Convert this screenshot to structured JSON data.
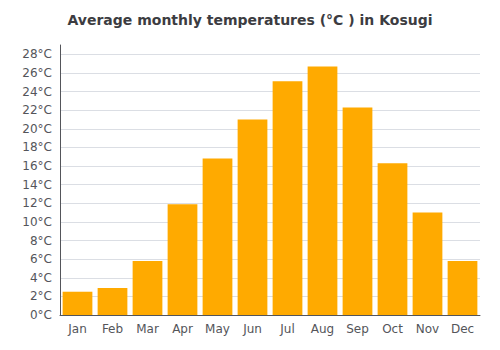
{
  "chart_data": {
    "type": "bar",
    "title": "Average monthly temperatures (°C ) in Kosugi",
    "categories": [
      "Jan",
      "Feb",
      "Mar",
      "Apr",
      "May",
      "Jun",
      "Jul",
      "Aug",
      "Sep",
      "Oct",
      "Nov",
      "Dec"
    ],
    "values": [
      2.5,
      2.9,
      5.8,
      11.9,
      16.8,
      21.0,
      25.1,
      26.7,
      22.3,
      16.3,
      11.0,
      5.8
    ],
    "color": "#FFAA00",
    "ylim": [
      0,
      29
    ],
    "yticks": [
      {
        "value": 0,
        "label": "0°C"
      },
      {
        "value": 2,
        "label": "2°C"
      },
      {
        "value": 4,
        "label": "4°C"
      },
      {
        "value": 6,
        "label": "6°C"
      },
      {
        "value": 8,
        "label": "8°C"
      },
      {
        "value": 10,
        "label": "10°C"
      },
      {
        "value": 12,
        "label": "12°C"
      },
      {
        "value": 14,
        "label": "14°C"
      },
      {
        "value": 16,
        "label": "16°C"
      },
      {
        "value": 18,
        "label": "18°C"
      },
      {
        "value": 20,
        "label": "20°C"
      },
      {
        "value": 22,
        "label": "22°C"
      },
      {
        "value": 24,
        "label": "24°C"
      },
      {
        "value": 26,
        "label": "26°C"
      },
      {
        "value": 28,
        "label": "28°C"
      }
    ],
    "grid": true
  }
}
